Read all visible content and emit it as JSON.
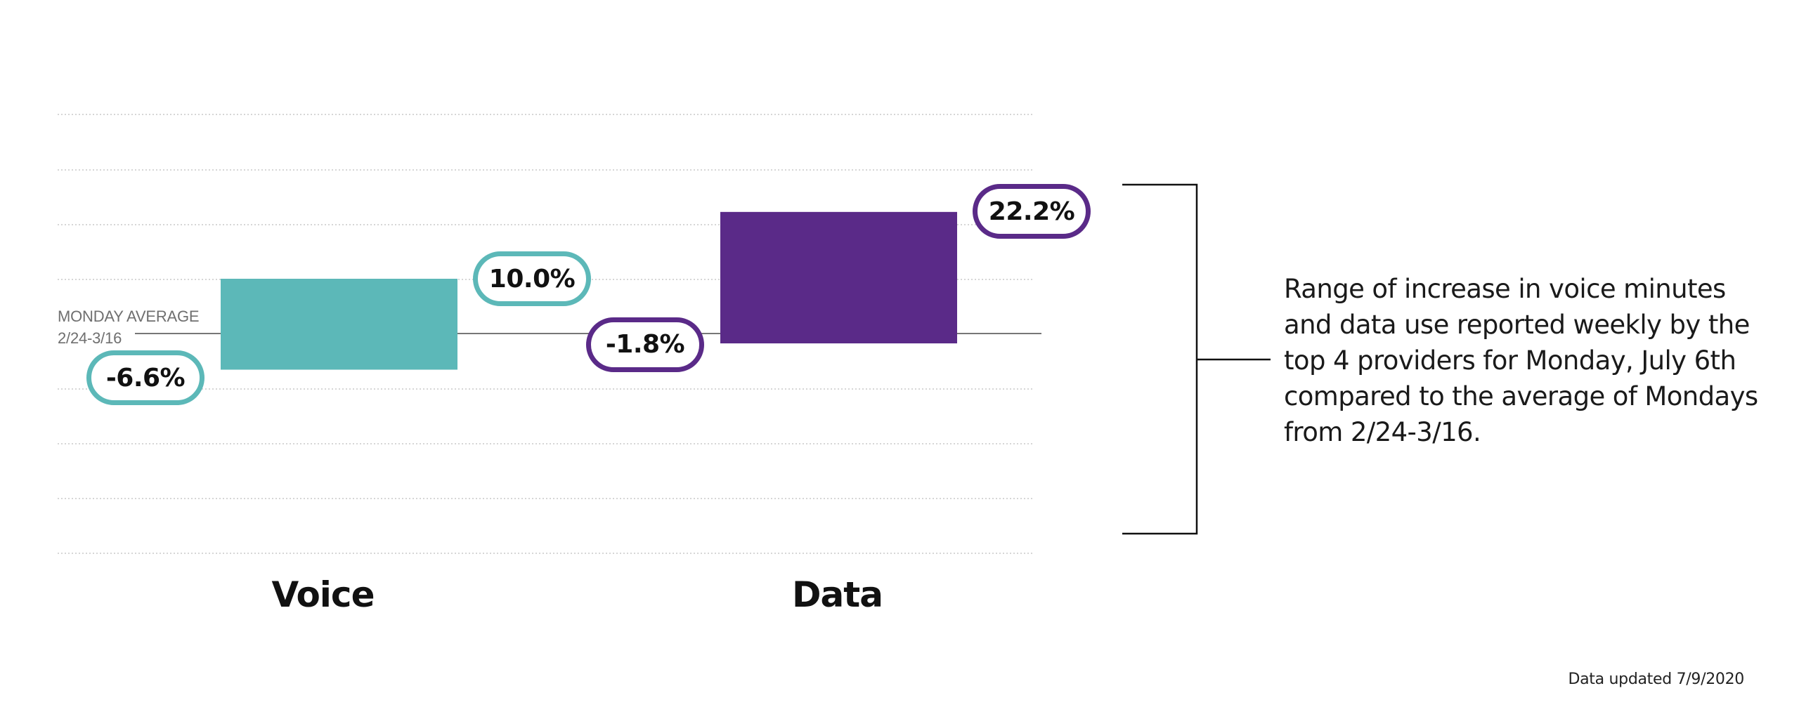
{
  "chart_data": {
    "type": "bar",
    "subtype": "floating-range",
    "categories": [
      "Voice",
      "Data"
    ],
    "series": [
      {
        "category": "Voice",
        "low": -6.6,
        "high": 10.0,
        "low_label": "-6.6%",
        "high_label": "10.0%",
        "color": "#5cb8b8"
      },
      {
        "category": "Data",
        "low": -1.8,
        "high": 22.2,
        "low_label": "-1.8%",
        "high_label": "22.2%",
        "color": "#5a2a88"
      }
    ],
    "baseline": {
      "value": 0,
      "label_line1": "MONDAY AVERAGE",
      "label_line2": "2/24-3/16"
    },
    "ylim": [
      -40,
      40
    ],
    "grid": true,
    "xlabel": "",
    "ylabel": ""
  },
  "annotation": {
    "lines": [
      "Range of increase in voice minutes",
      "and data use reported weekly by the",
      "top 4 providers for Monday, July 6th",
      "compared to the average of Mondays",
      "from 2/24-3/16."
    ]
  },
  "footnote": "Data updated 7/9/2020",
  "colors": {
    "voice": "#5cb8b8",
    "data": "#5a2a88",
    "grid": "#c8c8c8",
    "baseline": "#777777",
    "bracket": "#111111"
  }
}
